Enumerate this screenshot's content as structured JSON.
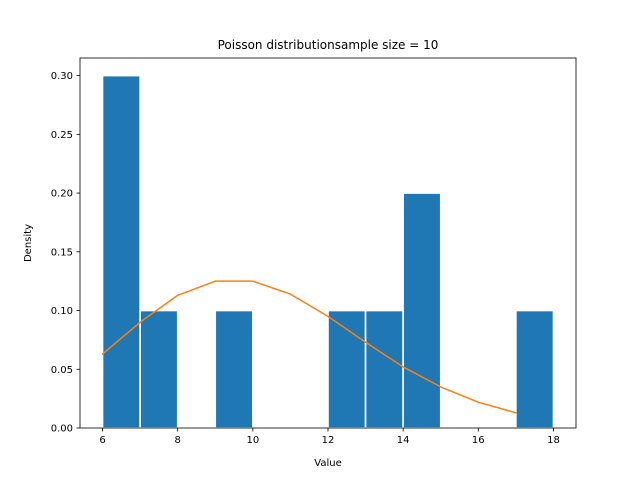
{
  "chart_data": {
    "type": "bar",
    "title": "Poisson distributionsample size = 10",
    "xlabel": "Value",
    "ylabel": "Density",
    "xlim": [
      5.4,
      18.6
    ],
    "ylim": [
      0,
      0.315
    ],
    "xticks": [
      6,
      8,
      10,
      12,
      14,
      16,
      18
    ],
    "yticks": [
      0.0,
      0.05,
      0.1,
      0.15,
      0.2,
      0.25,
      0.3
    ],
    "ytick_labels": [
      "0.00",
      "0.05",
      "0.10",
      "0.15",
      "0.20",
      "0.25",
      "0.30"
    ],
    "histogram": {
      "bins": [
        [
          6.0,
          7.0
        ],
        [
          7.0,
          8.0
        ],
        [
          9.0,
          10.0
        ],
        [
          12.0,
          13.0
        ],
        [
          13.0,
          14.0
        ],
        [
          14.0,
          15.0
        ],
        [
          17.0,
          18.0
        ]
      ],
      "values": [
        0.3,
        0.1,
        0.1,
        0.1,
        0.1,
        0.2,
        0.1
      ],
      "color": "#1f77b4"
    },
    "pmf_line": {
      "x": [
        6,
        7,
        8,
        9,
        10,
        11,
        12,
        13,
        14,
        15,
        16,
        17
      ],
      "y": [
        0.063,
        0.09,
        0.113,
        0.125,
        0.125,
        0.114,
        0.095,
        0.073,
        0.052,
        0.035,
        0.022,
        0.013
      ],
      "color": "#ff7f0e"
    },
    "grid": false,
    "legend": "none"
  }
}
